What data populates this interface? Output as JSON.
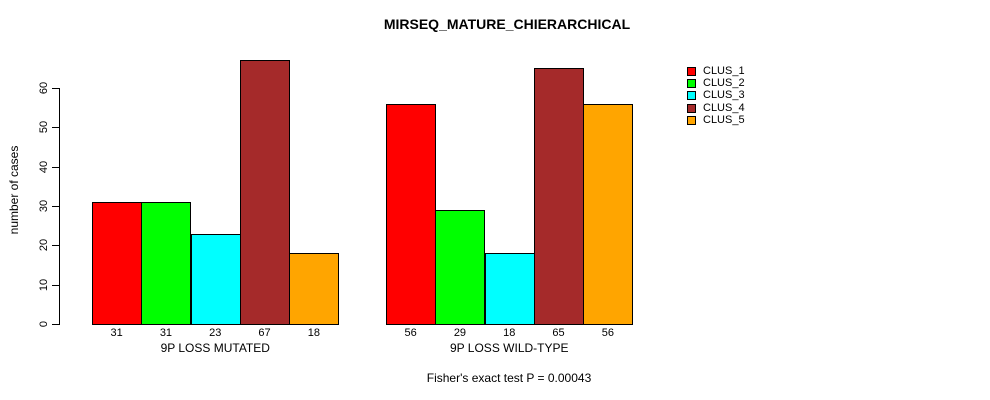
{
  "title": "MIRSEQ_MATURE_CHIERARCHICAL",
  "footer": "Fisher's exact test P = 0.00043",
  "y_axis": {
    "label": "number of cases",
    "ticks": [
      0,
      10,
      20,
      30,
      40,
      50,
      60
    ]
  },
  "legend": {
    "items": [
      {
        "label": "CLUS_1",
        "color": "#FF0000"
      },
      {
        "label": "CLUS_2",
        "color": "#00FF00"
      },
      {
        "label": "CLUS_3",
        "color": "#00FFFF"
      },
      {
        "label": "CLUS_4",
        "color": "#A52A2A"
      },
      {
        "label": "CLUS_5",
        "color": "#FFA500"
      }
    ]
  },
  "chart_data": {
    "type": "bar",
    "title": "MIRSEQ_MATURE_CHIERARCHICAL",
    "ylabel": "number of cases",
    "xlabel": "",
    "ylim": [
      0,
      60
    ],
    "yticks": [
      0,
      10,
      20,
      30,
      40,
      50,
      60
    ],
    "grid": false,
    "legend_position": "right-outside",
    "categories": [
      "9P LOSS MUTATED",
      "9P LOSS WILD-TYPE"
    ],
    "series": [
      {
        "name": "CLUS_1",
        "color": "#FF0000",
        "values": [
          31,
          56
        ]
      },
      {
        "name": "CLUS_2",
        "color": "#00FF00",
        "values": [
          31,
          29
        ]
      },
      {
        "name": "CLUS_3",
        "color": "#00FFFF",
        "values": [
          23,
          18
        ]
      },
      {
        "name": "CLUS_4",
        "color": "#A52A2A",
        "values": [
          67,
          65
        ]
      },
      {
        "name": "CLUS_5",
        "color": "#FFA500",
        "values": [
          18,
          56
        ]
      }
    ],
    "bar_value_labels": [
      [
        31,
        31,
        23,
        67,
        18
      ],
      [
        56,
        29,
        18,
        65,
        56
      ]
    ],
    "annotation": "Fisher's exact test P = 0.00043"
  }
}
